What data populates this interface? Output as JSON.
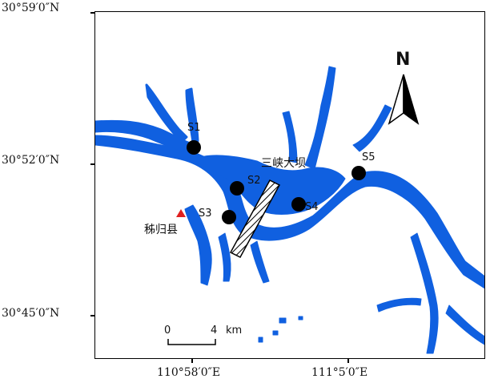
{
  "coordinates": {
    "lat_top": "30°59′0″N",
    "lat_mid": "30°52′0″N",
    "lat_bottom": "30°45′0″N",
    "lon_left": "110°58′0″E",
    "lon_right": "111°5′0″E"
  },
  "north_arrow": {
    "label": "N"
  },
  "scale_bar": {
    "start": "0",
    "end": "4",
    "unit": "km"
  },
  "sites": [
    "S1",
    "S2",
    "S3",
    "S4",
    "S5"
  ],
  "places": {
    "dam": "三峡大坝",
    "county": "秭归县"
  },
  "colors": {
    "water": "#1060e0",
    "site_marker": "#000000",
    "county_marker": "#e02020",
    "land": "#ffffff"
  }
}
